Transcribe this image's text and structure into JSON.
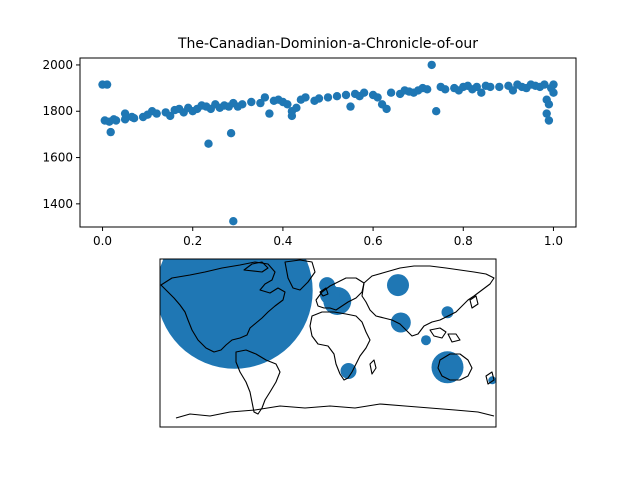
{
  "colors": {
    "marker": "#1f77b4",
    "axes": "#000000",
    "background": "#ffffff"
  },
  "chart_data": [
    {
      "type": "scatter",
      "title": "The-Canadian-Dominion-a-Chronicle-of-our",
      "xlabel": "",
      "ylabel": "",
      "xlim": [
        -0.05,
        1.05
      ],
      "ylim": [
        1300,
        2030
      ],
      "xticks": [
        0.0,
        0.2,
        0.4,
        0.6,
        0.8,
        1.0
      ],
      "xtick_labels": [
        "0.0",
        "0.2",
        "0.4",
        "0.6",
        "0.8",
        "1.0"
      ],
      "yticks": [
        1400,
        1600,
        1800,
        2000
      ],
      "ytick_labels": [
        "1400",
        "1600",
        "1800",
        "2000"
      ],
      "grid": false,
      "points": [
        [
          0.0,
          1915
        ],
        [
          0.01,
          1915
        ],
        [
          0.005,
          1760
        ],
        [
          0.015,
          1755
        ],
        [
          0.018,
          1710
        ],
        [
          0.03,
          1760
        ],
        [
          0.05,
          1765
        ],
        [
          0.05,
          1790
        ],
        [
          0.07,
          1770
        ],
        [
          0.09,
          1775
        ],
        [
          0.1,
          1785
        ],
        [
          0.11,
          1800
        ],
        [
          0.12,
          1790
        ],
        [
          0.14,
          1795
        ],
        [
          0.15,
          1780
        ],
        [
          0.16,
          1805
        ],
        [
          0.17,
          1810
        ],
        [
          0.18,
          1795
        ],
        [
          0.19,
          1815
        ],
        [
          0.2,
          1800
        ],
        [
          0.21,
          1810
        ],
        [
          0.22,
          1825
        ],
        [
          0.23,
          1820
        ],
        [
          0.24,
          1810
        ],
        [
          0.235,
          1660
        ],
        [
          0.25,
          1830
        ],
        [
          0.26,
          1815
        ],
        [
          0.27,
          1825
        ],
        [
          0.28,
          1820
        ],
        [
          0.285,
          1705
        ],
        [
          0.29,
          1835
        ],
        [
          0.3,
          1820
        ],
        [
          0.31,
          1830
        ],
        [
          0.33,
          1840
        ],
        [
          0.35,
          1835
        ],
        [
          0.36,
          1860
        ],
        [
          0.37,
          1790
        ],
        [
          0.38,
          1845
        ],
        [
          0.39,
          1850
        ],
        [
          0.4,
          1840
        ],
        [
          0.41,
          1830
        ],
        [
          0.42,
          1800
        ],
        [
          0.42,
          1780
        ],
        [
          0.43,
          1815
        ],
        [
          0.44,
          1850
        ],
        [
          0.45,
          1860
        ],
        [
          0.47,
          1845
        ],
        [
          0.48,
          1855
        ],
        [
          0.5,
          1860
        ],
        [
          0.52,
          1865
        ],
        [
          0.54,
          1870
        ],
        [
          0.55,
          1820
        ],
        [
          0.56,
          1875
        ],
        [
          0.57,
          1865
        ],
        [
          0.58,
          1880
        ],
        [
          0.6,
          1870
        ],
        [
          0.61,
          1860
        ],
        [
          0.62,
          1830
        ],
        [
          0.63,
          1810
        ],
        [
          0.64,
          1880
        ],
        [
          0.66,
          1875
        ],
        [
          0.67,
          1890
        ],
        [
          0.68,
          1885
        ],
        [
          0.69,
          1880
        ],
        [
          0.7,
          1890
        ],
        [
          0.71,
          1900
        ],
        [
          0.72,
          1895
        ],
        [
          0.73,
          2000
        ],
        [
          0.74,
          1800
        ],
        [
          0.75,
          1905
        ],
        [
          0.76,
          1895
        ],
        [
          0.78,
          1900
        ],
        [
          0.79,
          1890
        ],
        [
          0.8,
          1905
        ],
        [
          0.81,
          1910
        ],
        [
          0.82,
          1895
        ],
        [
          0.83,
          1905
        ],
        [
          0.84,
          1880
        ],
        [
          0.85,
          1910
        ],
        [
          0.86,
          1905
        ],
        [
          0.88,
          1905
        ],
        [
          0.9,
          1910
        ],
        [
          0.91,
          1890
        ],
        [
          0.92,
          1915
        ],
        [
          0.93,
          1905
        ],
        [
          0.94,
          1900
        ],
        [
          0.95,
          1915
        ],
        [
          0.96,
          1910
        ],
        [
          0.97,
          1905
        ],
        [
          0.98,
          1915
        ],
        [
          0.985,
          1850
        ],
        [
          0.99,
          1830
        ],
        [
          0.985,
          1790
        ],
        [
          0.99,
          1760
        ],
        [
          0.995,
          1900
        ],
        [
          1.0,
          1915
        ],
        [
          1.0,
          1880
        ],
        [
          0.29,
          1325
        ],
        [
          0.025,
          1765
        ],
        [
          0.065,
          1775
        ]
      ]
    },
    {
      "type": "bubble-map",
      "projection": "equirectangular",
      "lon_range": [
        -180,
        180
      ],
      "lat_range": [
        -90,
        90
      ],
      "bubbles": [
        {
          "lon": -100,
          "lat": 56,
          "size": 78
        },
        {
          "lon": 10,
          "lat": 45,
          "size": 14
        },
        {
          "lon": 2,
          "lat": 52,
          "size": 10
        },
        {
          "lon": -1,
          "lat": 62,
          "size": 8
        },
        {
          "lon": 75,
          "lat": 62,
          "size": 11
        },
        {
          "lon": 78,
          "lat": 22,
          "size": 10
        },
        {
          "lon": 105,
          "lat": 3,
          "size": 5
        },
        {
          "lon": 128,
          "lat": 33,
          "size": 6
        },
        {
          "lon": 22,
          "lat": -30,
          "size": 8
        },
        {
          "lon": 128,
          "lat": -26,
          "size": 16
        },
        {
          "lon": 176,
          "lat": -40,
          "size": 4
        }
      ]
    }
  ]
}
